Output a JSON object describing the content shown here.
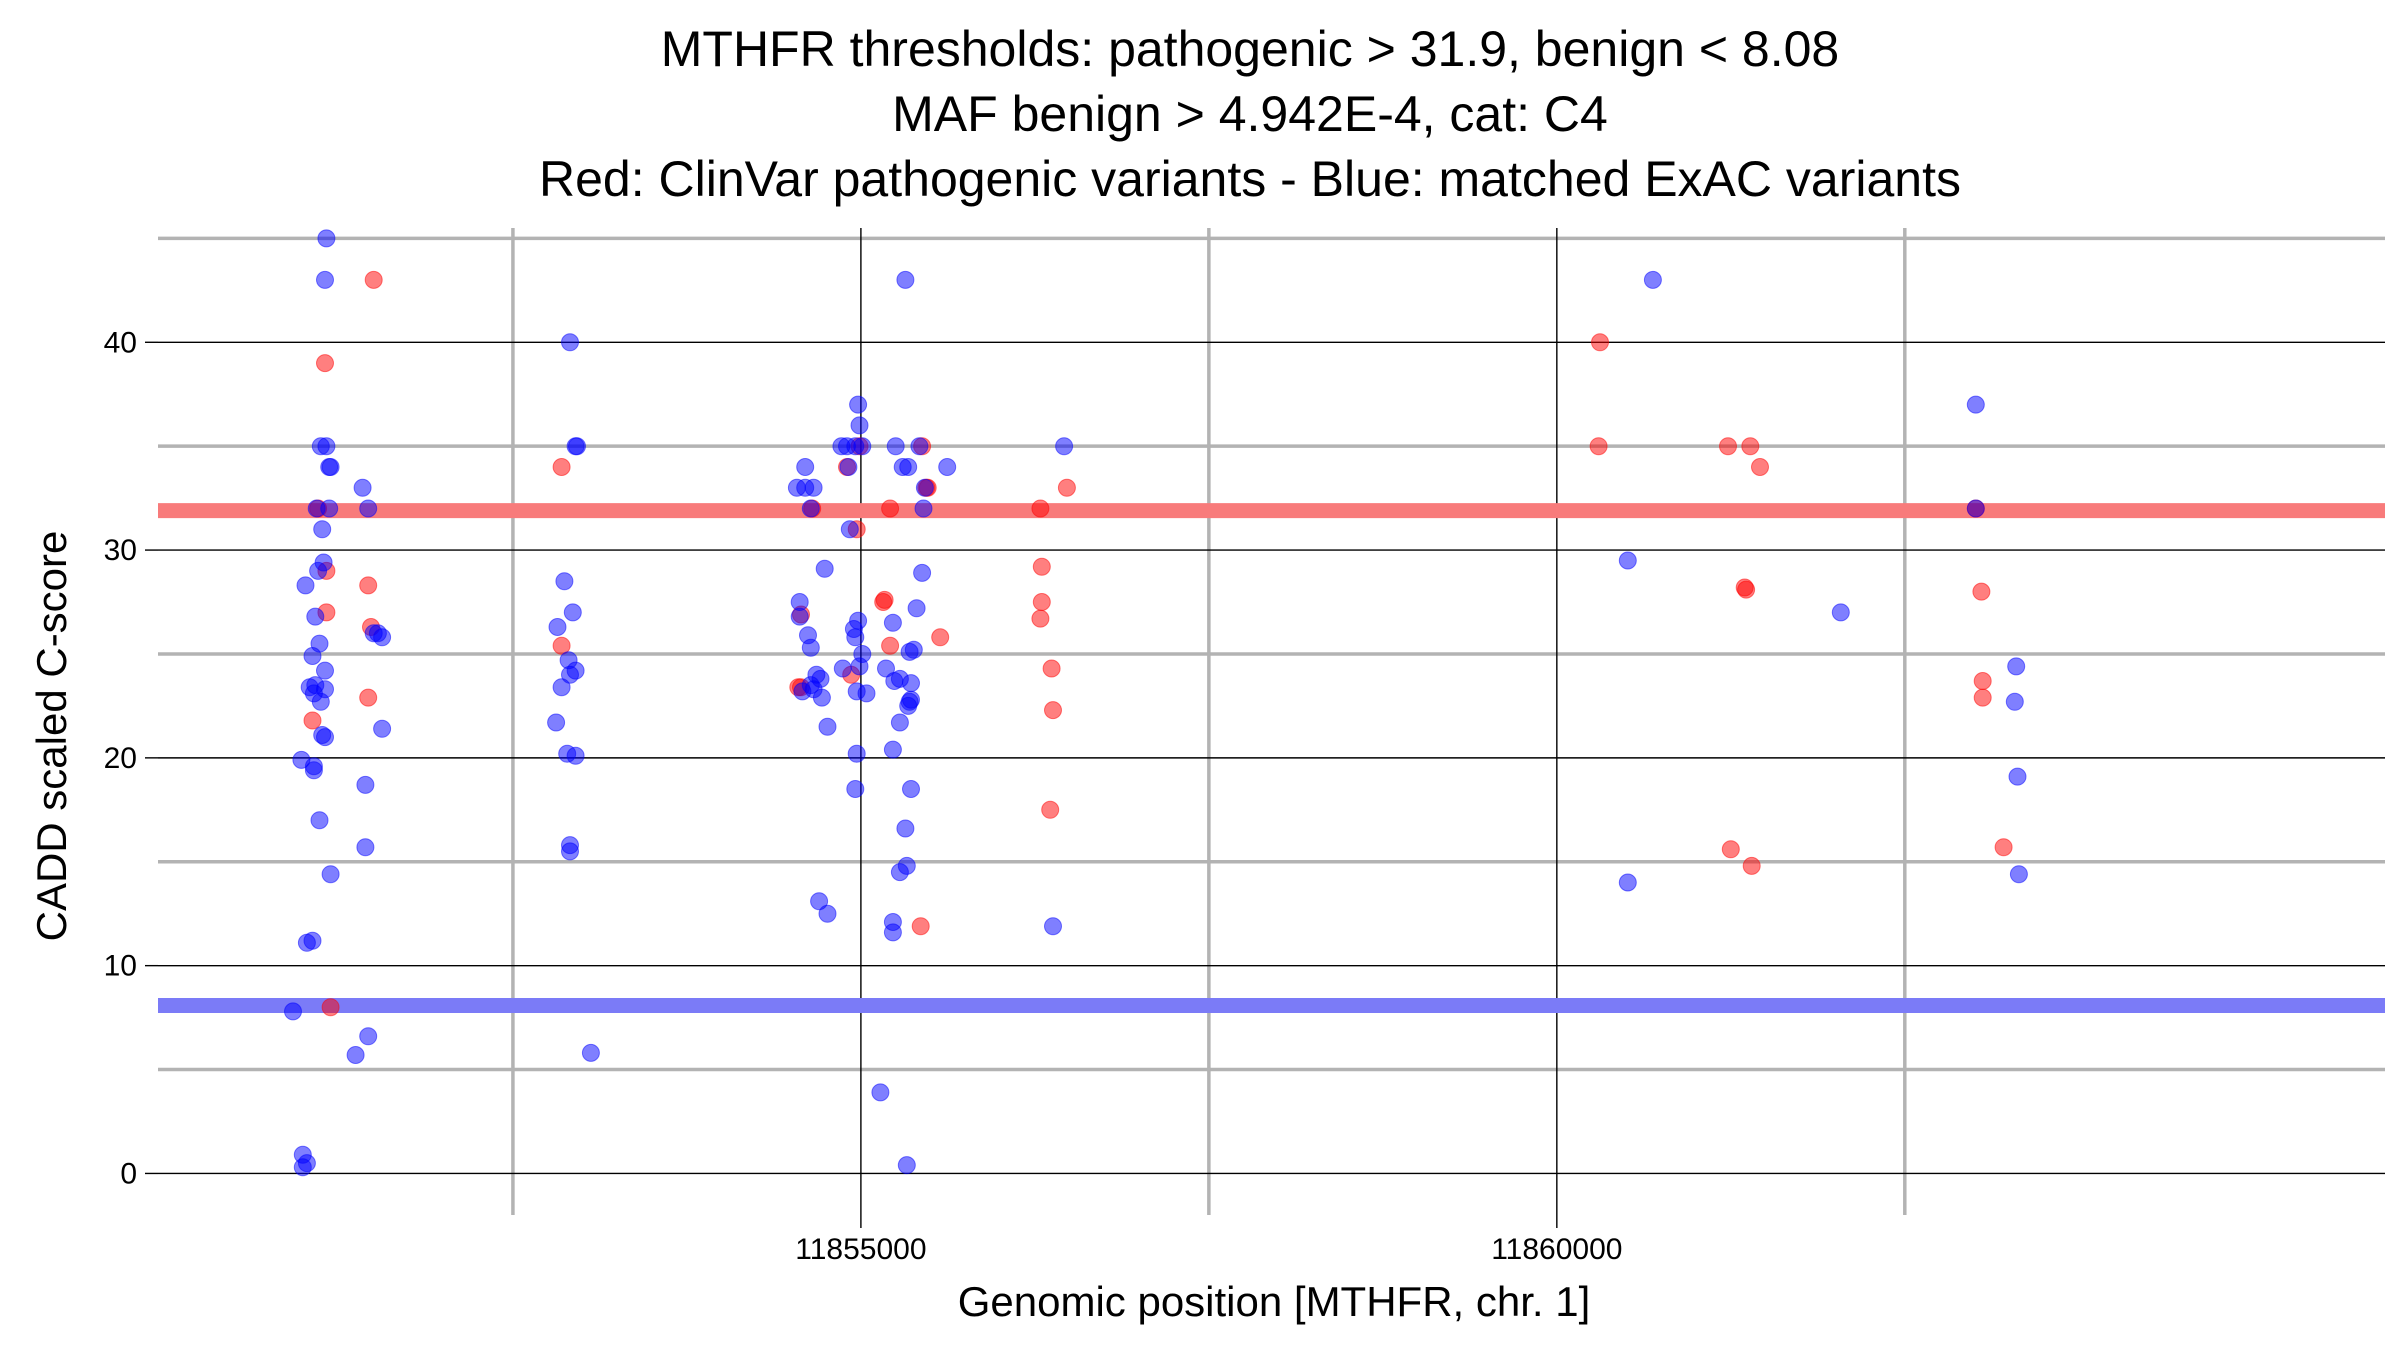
{
  "chart_data": {
    "type": "scatter",
    "title_lines": [
      "MTHFR thresholds: pathogenic > 31.9, benign < 8.08",
      "MAF benign > 4.942E-4, cat: C4",
      "Red: ClinVar pathogenic variants - Blue: matched ExAC variants"
    ],
    "xlabel": "Genomic position [MTHFR, chr. 1]",
    "ylabel": "CADD scaled C-score",
    "xlim": [
      11849950,
      11865950
    ],
    "ylim": [
      -2,
      45.5
    ],
    "x_ticks": [
      11855000,
      11860000
    ],
    "x_tick_labels": [
      "11855000",
      "11860000"
    ],
    "x_minor_ticks": [
      11852500,
      11857500,
      11862500
    ],
    "y_ticks": [
      0,
      10,
      20,
      30,
      40
    ],
    "y_tick_labels": [
      "0",
      "10",
      "20",
      "30",
      "40"
    ],
    "y_minor_ticks": [
      5,
      15,
      25,
      35,
      45
    ],
    "thresholds": [
      {
        "name": "pathogenic",
        "value": 31.9,
        "color": "#f87b7b"
      },
      {
        "name": "benign",
        "value": 8.08,
        "color": "#7b7bf7"
      }
    ],
    "series": [
      {
        "name": "ClinVar pathogenic",
        "color": "#ff0000",
        "points": [
          [
            11851060,
            21.8
          ],
          [
            11851100,
            32
          ],
          [
            11851150,
            39
          ],
          [
            11851160,
            27
          ],
          [
            11851160,
            29
          ],
          [
            11851190,
            8
          ],
          [
            11851500,
            43
          ],
          [
            11851460,
            28.3
          ],
          [
            11851480,
            26.3
          ],
          [
            11851460,
            22.9
          ],
          [
            11852850,
            34
          ],
          [
            11852850,
            25.4
          ],
          [
            11854570,
            26.9
          ],
          [
            11854570,
            23.4
          ],
          [
            11854550,
            23.4
          ],
          [
            11854650,
            32
          ],
          [
            11855430,
            11.9
          ],
          [
            11855480,
            33
          ],
          [
            11855570,
            25.8
          ],
          [
            11855470,
            33
          ],
          [
            11855440,
            35
          ],
          [
            11854900,
            34
          ],
          [
            11854930,
            24
          ],
          [
            11854970,
            31
          ],
          [
            11854990,
            35
          ],
          [
            11855160,
            27.5
          ],
          [
            11855170,
            27.6
          ],
          [
            11855210,
            25.4
          ],
          [
            11855210,
            32
          ],
          [
            11856290,
            32
          ],
          [
            11856300,
            29.2
          ],
          [
            11856300,
            27.5
          ],
          [
            11856290,
            26.7
          ],
          [
            11856370,
            24.3
          ],
          [
            11856380,
            22.3
          ],
          [
            11856360,
            17.5
          ],
          [
            11856480,
            33
          ],
          [
            11860310,
            40
          ],
          [
            11860300,
            35
          ],
          [
            11861230,
            35
          ],
          [
            11861390,
            35
          ],
          [
            11861460,
            34
          ],
          [
            11861350,
            28.2
          ],
          [
            11861360,
            28.1
          ],
          [
            11861250,
            15.6
          ],
          [
            11861400,
            14.8
          ],
          [
            11863010,
            32
          ],
          [
            11863050,
            28
          ],
          [
            11863060,
            23.7
          ],
          [
            11863060,
            22.9
          ],
          [
            11863210,
            15.7
          ]
        ]
      },
      {
        "name": "matched ExAC",
        "color": "#0000ff",
        "points": [
          [
            11851160,
            45
          ],
          [
            11851150,
            43
          ],
          [
            11851120,
            35
          ],
          [
            11851160,
            35
          ],
          [
            11851180,
            34
          ],
          [
            11851190,
            34
          ],
          [
            11851180,
            32
          ],
          [
            11851090,
            32
          ],
          [
            11851130,
            31
          ],
          [
            11851140,
            29.4
          ],
          [
            11851100,
            29
          ],
          [
            11851010,
            28.3
          ],
          [
            11851080,
            26.8
          ],
          [
            11851110,
            25.5
          ],
          [
            11851060,
            24.9
          ],
          [
            11851150,
            24.2
          ],
          [
            11851040,
            23.4
          ],
          [
            11851080,
            23.5
          ],
          [
            11851150,
            23.3
          ],
          [
            11851070,
            23.1
          ],
          [
            11851120,
            22.7
          ],
          [
            11851130,
            21.1
          ],
          [
            11851150,
            21
          ],
          [
            11850980,
            19.9
          ],
          [
            11851070,
            19.6
          ],
          [
            11851070,
            19.4
          ],
          [
            11851110,
            17
          ],
          [
            11851190,
            14.4
          ],
          [
            11851060,
            11.2
          ],
          [
            11851020,
            11.1
          ],
          [
            11850920,
            7.8
          ],
          [
            11850990,
            0.9
          ],
          [
            11851020,
            0.5
          ],
          [
            11850990,
            0.3
          ],
          [
            11851420,
            33
          ],
          [
            11851460,
            32
          ],
          [
            11851500,
            26
          ],
          [
            11851530,
            26
          ],
          [
            11851560,
            25.8
          ],
          [
            11851560,
            21.4
          ],
          [
            11851440,
            18.7
          ],
          [
            11851440,
            15.7
          ],
          [
            11851460,
            6.6
          ],
          [
            11851370,
            5.7
          ],
          [
            11852910,
            40
          ],
          [
            11852950,
            35
          ],
          [
            11852960,
            35
          ],
          [
            11852870,
            28.5
          ],
          [
            11852820,
            26.3
          ],
          [
            11852930,
            27
          ],
          [
            11852900,
            24.7
          ],
          [
            11852950,
            24.2
          ],
          [
            11852910,
            24
          ],
          [
            11852850,
            23.4
          ],
          [
            11852810,
            21.7
          ],
          [
            11852890,
            20.2
          ],
          [
            11852950,
            20.1
          ],
          [
            11852910,
            15.8
          ],
          [
            11852910,
            15.5
          ],
          [
            11853060,
            5.8
          ],
          [
            11854600,
            34
          ],
          [
            11854540,
            33
          ],
          [
            11854600,
            33
          ],
          [
            11854660,
            33
          ],
          [
            11854640,
            32
          ],
          [
            11854740,
            29.1
          ],
          [
            11854560,
            27.5
          ],
          [
            11854560,
            26.8
          ],
          [
            11854620,
            25.9
          ],
          [
            11854640,
            25.3
          ],
          [
            11854680,
            24
          ],
          [
            11854710,
            23.8
          ],
          [
            11854640,
            23.5
          ],
          [
            11854660,
            23.3
          ],
          [
            11854580,
            23.2
          ],
          [
            11854720,
            22.9
          ],
          [
            11854760,
            21.5
          ],
          [
            11854700,
            13.1
          ],
          [
            11854760,
            12.5
          ],
          [
            11855250,
            35
          ],
          [
            11855300,
            34
          ],
          [
            11855340,
            34
          ],
          [
            11855460,
            33
          ],
          [
            11855450,
            32
          ],
          [
            11855230,
            26.5
          ],
          [
            11855180,
            24.3
          ],
          [
            11855240,
            23.7
          ],
          [
            11855280,
            23.8
          ],
          [
            11855350,
            22.7
          ],
          [
            11855350,
            25.1
          ],
          [
            11855280,
            21.7
          ],
          [
            11855230,
            20.4
          ],
          [
            11855330,
            14.8
          ],
          [
            11855280,
            14.5
          ],
          [
            11855230,
            11.6
          ],
          [
            11855140,
            3.9
          ],
          [
            11854860,
            35
          ],
          [
            11854900,
            35
          ],
          [
            11854960,
            35
          ],
          [
            11855010,
            35
          ],
          [
            11854910,
            34
          ],
          [
            11854980,
            37
          ],
          [
            11854990,
            36
          ],
          [
            11854920,
            31
          ],
          [
            11854980,
            26.6
          ],
          [
            11854950,
            26.2
          ],
          [
            11854960,
            25.8
          ],
          [
            11855010,
            25
          ],
          [
            11854870,
            24.3
          ],
          [
            11854990,
            24.4
          ],
          [
            11854970,
            23.2
          ],
          [
            11855040,
            23.1
          ],
          [
            11854970,
            20.2
          ],
          [
            11854960,
            18.5
          ],
          [
            11855320,
            43
          ],
          [
            11855420,
            35
          ],
          [
            11855620,
            34
          ],
          [
            11855440,
            28.9
          ],
          [
            11855400,
            27.2
          ],
          [
            11855380,
            25.2
          ],
          [
            11855360,
            23.6
          ],
          [
            11855360,
            22.8
          ],
          [
            11855340,
            22.5
          ],
          [
            11855360,
            18.5
          ],
          [
            11855320,
            16.6
          ],
          [
            11855230,
            12.1
          ],
          [
            11855330,
            0.4
          ],
          [
            11856460,
            35
          ],
          [
            11856380,
            11.9
          ],
          [
            11860690,
            43
          ],
          [
            11860510,
            29.5
          ],
          [
            11860510,
            14
          ],
          [
            11862040,
            27
          ],
          [
            11863010,
            37
          ],
          [
            11863010,
            32
          ],
          [
            11863300,
            24.4
          ],
          [
            11863290,
            22.7
          ],
          [
            11863310,
            19.1
          ],
          [
            11863320,
            14.4
          ]
        ]
      }
    ]
  }
}
